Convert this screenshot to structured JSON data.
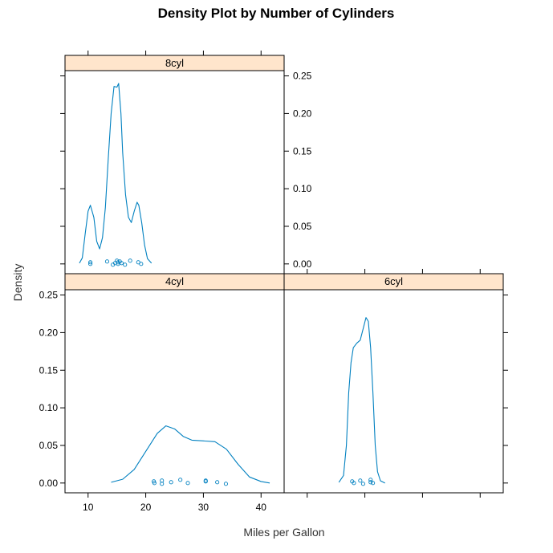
{
  "chart_data": {
    "type": "line",
    "title": "Density Plot by Number of Cylinders",
    "xlabel": "Miles per Gallon",
    "ylabel": "Density",
    "xlim": [
      6,
      44
    ],
    "ylim": [
      -0.013,
      0.257
    ],
    "x_ticks": [
      10,
      20,
      30,
      40
    ],
    "y_ticks": [
      0.0,
      0.05,
      0.1,
      0.15,
      0.2,
      0.25
    ],
    "y_tick_labels": [
      "0.00",
      "0.05",
      "0.10",
      "0.15",
      "0.20",
      "0.25"
    ],
    "layout": "2x2 lattice",
    "grid": false,
    "legend": "none",
    "colors": {
      "line": "#0080C0",
      "strip_fill": "#FFE5CC",
      "axis": "#000000"
    },
    "panels": [
      {
        "strip": "8cyl",
        "row": "top",
        "col": "left",
        "y_tick_labels_side": "right",
        "x_tick_labels_side": "top",
        "density": {
          "x": [
            8.5,
            9.0,
            9.5,
            10.0,
            10.4,
            11.0,
            11.5,
            12.0,
            12.5,
            13.0,
            13.5,
            14.0,
            14.5,
            15.0,
            15.3,
            15.7,
            16.0,
            16.5,
            17.0,
            17.5,
            18.0,
            18.5,
            18.8,
            19.3,
            19.8,
            20.3,
            21.0
          ],
          "y": [
            0.001,
            0.008,
            0.04,
            0.07,
            0.078,
            0.062,
            0.03,
            0.02,
            0.035,
            0.075,
            0.14,
            0.2,
            0.236,
            0.235,
            0.24,
            0.2,
            0.148,
            0.092,
            0.062,
            0.055,
            0.07,
            0.082,
            0.078,
            0.055,
            0.025,
            0.007,
            0.001
          ]
        },
        "points": [
          10.4,
          10.4,
          13.3,
          14.3,
          14.7,
          15.0,
          15.2,
          15.2,
          15.5,
          15.8,
          16.4,
          17.3,
          18.7,
          19.2
        ]
      },
      {
        "strip": "4cyl",
        "row": "bottom",
        "col": "left",
        "y_tick_labels_side": "left",
        "x_tick_labels_side": "bottom",
        "density": {
          "x": [
            14.0,
            16.0,
            18.0,
            20.0,
            22.0,
            23.5,
            25.0,
            26.5,
            28.0,
            30.0,
            32.0,
            34.0,
            36.0,
            38.0,
            40.0,
            41.5
          ],
          "y": [
            0.001,
            0.005,
            0.018,
            0.042,
            0.066,
            0.076,
            0.072,
            0.062,
            0.057,
            0.056,
            0.055,
            0.045,
            0.025,
            0.008,
            0.002,
            0.0
          ]
        },
        "points": [
          21.4,
          21.5,
          22.8,
          22.8,
          24.4,
          26.0,
          27.3,
          30.4,
          30.4,
          32.4,
          33.9
        ]
      },
      {
        "strip": "6cyl",
        "row": "bottom",
        "col": "right",
        "y_tick_labels_side": "none",
        "x_tick_labels_side": "none",
        "density": {
          "x": [
            15.5,
            16.3,
            16.8,
            17.2,
            17.6,
            18.0,
            18.6,
            19.2,
            19.7,
            20.2,
            20.6,
            21.0,
            21.4,
            21.8,
            22.2,
            22.7,
            23.5
          ],
          "y": [
            0.001,
            0.01,
            0.05,
            0.12,
            0.16,
            0.18,
            0.186,
            0.19,
            0.205,
            0.22,
            0.215,
            0.18,
            0.12,
            0.05,
            0.015,
            0.003,
            0.0
          ]
        },
        "points": [
          17.8,
          18.1,
          19.2,
          19.7,
          21.0,
          21.0,
          21.4
        ]
      }
    ]
  }
}
